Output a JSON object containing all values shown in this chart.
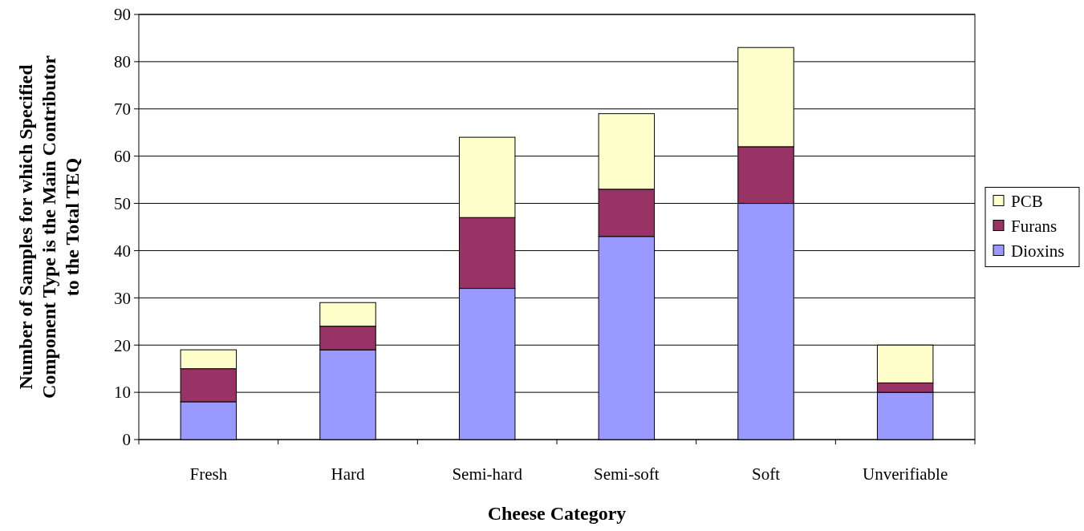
{
  "chart_data": {
    "type": "bar",
    "stacked": true,
    "xlabel": "Cheese Category",
    "ylabel": "Number of Samples for which Specified Component Type is the Main Contributor to the Total TEQ",
    "categories": [
      "Fresh",
      "Hard",
      "Semi-hard",
      "Semi-soft",
      "Soft",
      "Unverifiable"
    ],
    "series": [
      {
        "name": "Dioxins",
        "color": "#9999ff",
        "values": [
          8,
          19,
          32,
          43,
          50,
          10
        ]
      },
      {
        "name": "Furans",
        "color": "#993366",
        "values": [
          7,
          5,
          15,
          10,
          12,
          2
        ]
      },
      {
        "name": "PCB",
        "color": "#ffffcc",
        "values": [
          4,
          5,
          17,
          16,
          21,
          8
        ]
      }
    ],
    "ylim": [
      0,
      90
    ],
    "yticks": [
      0,
      10,
      20,
      30,
      40,
      50,
      60,
      70,
      80,
      90
    ],
    "grid": "y",
    "legend": "right"
  }
}
